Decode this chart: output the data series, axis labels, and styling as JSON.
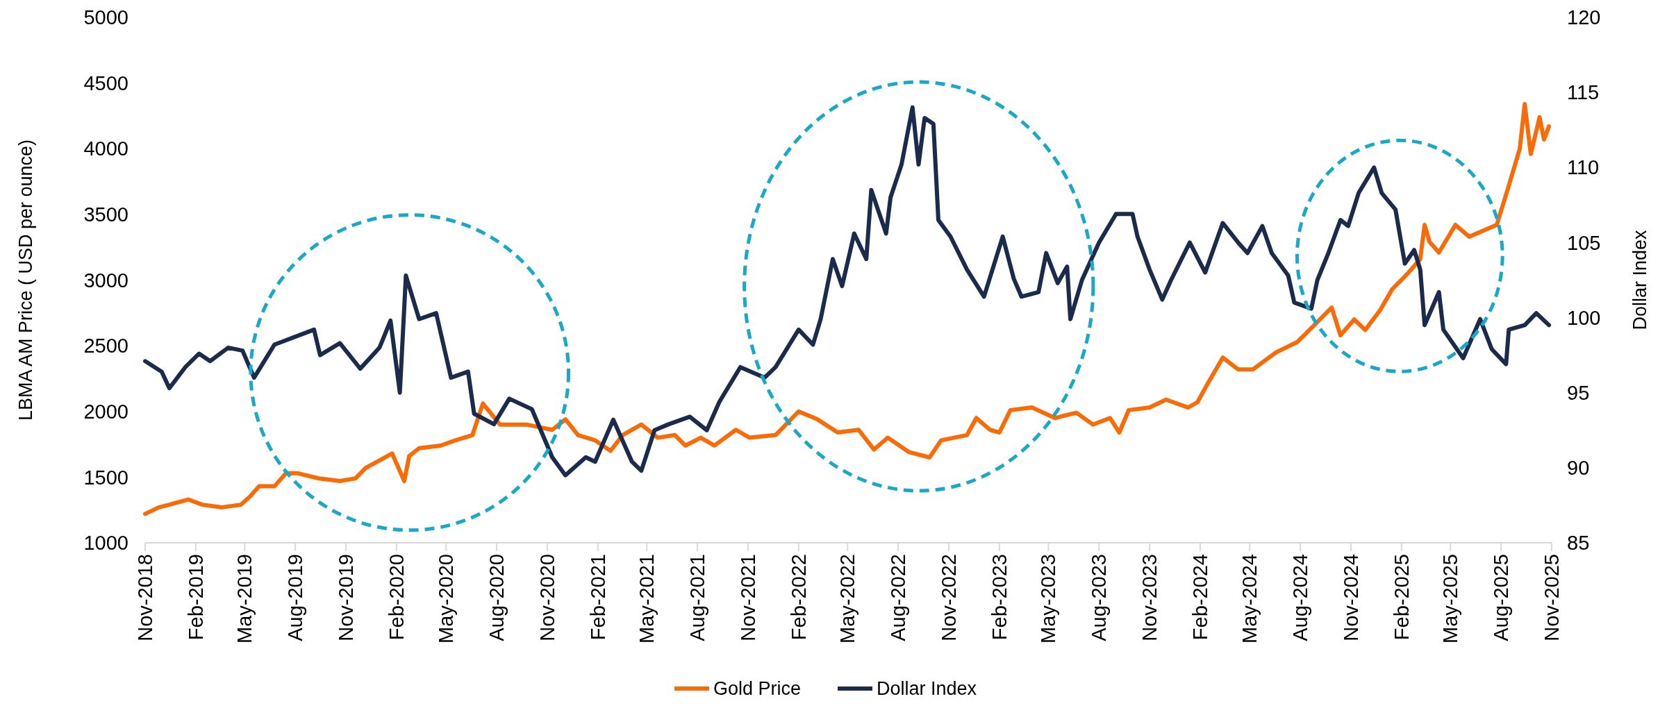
{
  "chart_data": {
    "type": "line",
    "ylabel": "LBMA AM Price ( USD per ounce)",
    "y2label": "Dollar Index",
    "xlim": [
      "2018-11",
      "2025-11"
    ],
    "xticks": [
      {
        "value": "2018-11",
        "label": "Nov-2018"
      },
      {
        "value": "2019-02",
        "label": "Feb-2019"
      },
      {
        "value": "2019-05",
        "label": "May-2019"
      },
      {
        "value": "2019-08",
        "label": "Aug-2019"
      },
      {
        "value": "2019-11",
        "label": "Nov-2019"
      },
      {
        "value": "2020-02",
        "label": "Feb-2020"
      },
      {
        "value": "2020-05",
        "label": "May-2020"
      },
      {
        "value": "2020-08",
        "label": "Aug-2020"
      },
      {
        "value": "2020-11",
        "label": "Nov-2020"
      },
      {
        "value": "2021-02",
        "label": "Feb-2021"
      },
      {
        "value": "2021-05",
        "label": "May-2021"
      },
      {
        "value": "2021-08",
        "label": "Aug-2021"
      },
      {
        "value": "2021-11",
        "label": "Nov-2021"
      },
      {
        "value": "2022-02",
        "label": "Feb-2022"
      },
      {
        "value": "2022-05",
        "label": "May-2022"
      },
      {
        "value": "2022-08",
        "label": "Aug-2022"
      },
      {
        "value": "2022-11",
        "label": "Nov-2022"
      },
      {
        "value": "2023-02",
        "label": "Feb-2023"
      },
      {
        "value": "2023-05",
        "label": "May-2023"
      },
      {
        "value": "2023-08",
        "label": "Aug-2023"
      },
      {
        "value": "2023-11",
        "label": "Nov-2023"
      },
      {
        "value": "2024-02",
        "label": "Feb-2024"
      },
      {
        "value": "2024-05",
        "label": "May-2024"
      },
      {
        "value": "2024-08",
        "label": "Aug-2024"
      },
      {
        "value": "2024-11",
        "label": "Nov-2024"
      },
      {
        "value": "2025-02",
        "label": "Feb-2025"
      },
      {
        "value": "2025-05",
        "label": "May-2025"
      },
      {
        "value": "2025-08",
        "label": "Aug-2025"
      },
      {
        "value": "2025-11",
        "label": "Nov-2025"
      }
    ],
    "ylim": [
      1000,
      5000
    ],
    "yticks": [
      1000,
      1500,
      2000,
      2500,
      3000,
      3500,
      4000,
      4500,
      5000
    ],
    "y2lim": [
      85,
      120
    ],
    "y2ticks": [
      85,
      90,
      95,
      100,
      105,
      110,
      115,
      120
    ],
    "grid": false,
    "legend": "bottom",
    "marker": "none",
    "line_style": "solid",
    "series": [
      {
        "name": "Gold Price",
        "color": "#f96b07",
        "x": [
          "2018-11-01",
          "2018-11-26",
          "2018-12-15",
          "2019-01-18",
          "2019-02-13",
          "2019-03-21",
          "2019-04-24",
          "2019-05-10",
          "2019-05-27",
          "2019-06-24",
          "2019-07-15",
          "2019-08-04",
          "2019-09-13",
          "2019-10-21",
          "2019-11-18",
          "2019-12-07",
          "2020-01-24",
          "2020-02-15",
          "2020-02-24",
          "2020-03-13",
          "2020-04-21",
          "2020-05-18",
          "2020-06-18",
          "2020-07-07",
          "2020-08-07",
          "2020-09-24",
          "2020-11-10",
          "2020-12-04",
          "2020-12-27",
          "2021-01-27",
          "2021-02-24",
          "2021-03-18",
          "2021-04-21",
          "2021-05-21",
          "2021-06-21",
          "2021-07-10",
          "2021-08-07",
          "2021-09-01",
          "2021-10-10",
          "2021-11-04",
          "2021-12-21",
          "2022-02-01",
          "2022-03-07",
          "2022-04-13",
          "2022-05-21",
          "2022-06-18",
          "2022-07-13",
          "2022-08-21",
          "2022-09-27",
          "2022-10-18",
          "2022-12-04",
          "2022-12-21",
          "2023-01-15",
          "2023-02-01",
          "2023-02-21",
          "2023-04-01",
          "2023-05-13",
          "2023-06-21",
          "2023-07-21",
          "2023-08-21",
          "2023-09-07",
          "2023-09-24",
          "2023-11-01",
          "2023-12-01",
          "2024-01-10",
          "2024-01-27",
          "2024-02-13",
          "2024-03-13",
          "2024-04-10",
          "2024-05-07",
          "2024-06-18",
          "2024-07-27",
          "2024-08-27",
          "2024-09-27",
          "2024-10-13",
          "2024-11-07",
          "2024-11-27",
          "2024-12-24",
          "2025-01-15",
          "2025-02-10",
          "2025-03-07",
          "2025-03-15",
          "2025-03-24",
          "2025-04-10",
          "2025-05-10",
          "2025-06-04",
          "2025-07-24",
          "2025-08-13",
          "2025-09-04",
          "2025-09-13",
          "2025-09-24",
          "2025-10-10",
          "2025-10-18",
          "2025-10-27"
        ],
        "values": [
          1220,
          1270,
          1290,
          1330,
          1290,
          1270,
          1290,
          1350,
          1430,
          1430,
          1530,
          1530,
          1490,
          1470,
          1490,
          1570,
          1680,
          1470,
          1660,
          1720,
          1740,
          1780,
          1820,
          2060,
          1900,
          1900,
          1860,
          1940,
          1820,
          1780,
          1700,
          1820,
          1900,
          1800,
          1820,
          1740,
          1800,
          1740,
          1860,
          1800,
          1820,
          2000,
          1940,
          1840,
          1860,
          1710,
          1800,
          1690,
          1650,
          1780,
          1820,
          1950,
          1860,
          1840,
          2010,
          2030,
          1950,
          1990,
          1900,
          1950,
          1840,
          2010,
          2030,
          2090,
          2030,
          2070,
          2200,
          2410,
          2320,
          2320,
          2450,
          2530,
          2660,
          2790,
          2580,
          2700,
          2620,
          2770,
          2930,
          3040,
          3160,
          3420,
          3290,
          3210,
          3420,
          3330,
          3420,
          3690,
          4000,
          4340,
          3960,
          4240,
          4070,
          4170
        ]
      },
      {
        "name": "Dollar Index",
        "color": "#1b2b4b",
        "axis": "y2",
        "x": [
          "2018-11-01",
          "2018-12-01",
          "2018-12-15",
          "2019-01-13",
          "2019-02-07",
          "2019-02-27",
          "2019-04-01",
          "2019-04-27",
          "2019-05-18",
          "2019-06-24",
          "2019-09-04",
          "2019-09-15",
          "2019-10-21",
          "2019-11-27",
          "2020-01-01",
          "2020-01-21",
          "2020-02-07",
          "2020-02-18",
          "2020-03-13",
          "2020-04-13",
          "2020-05-10",
          "2020-06-10",
          "2020-06-21",
          "2020-07-27",
          "2020-08-24",
          "2020-10-04",
          "2020-11-10",
          "2020-12-04",
          "2021-01-10",
          "2021-01-27",
          "2021-03-01",
          "2021-04-04",
          "2021-04-21",
          "2021-05-15",
          "2021-06-10",
          "2021-07-18",
          "2021-08-18",
          "2021-09-10",
          "2021-10-18",
          "2021-12-01",
          "2021-12-21",
          "2022-02-01",
          "2022-02-27",
          "2022-03-13",
          "2022-04-04",
          "2022-04-21",
          "2022-05-13",
          "2022-06-04",
          "2022-06-13",
          "2022-07-10",
          "2022-07-18",
          "2022-08-07",
          "2022-08-27",
          "2022-09-07",
          "2022-09-18",
          "2022-10-04",
          "2022-10-13",
          "2022-11-04",
          "2022-12-04",
          "2023-01-04",
          "2023-02-07",
          "2023-02-27",
          "2023-03-13",
          "2023-04-13",
          "2023-04-27",
          "2023-05-18",
          "2023-06-04",
          "2023-06-10",
          "2023-07-01",
          "2023-08-01",
          "2023-09-01",
          "2023-10-01",
          "2023-10-10",
          "2023-11-01",
          "2023-11-24",
          "2023-12-10",
          "2024-01-13",
          "2024-02-10",
          "2024-03-13",
          "2024-04-10",
          "2024-04-27",
          "2024-05-24",
          "2024-06-10",
          "2024-07-10",
          "2024-07-21",
          "2024-08-21",
          "2024-09-01",
          "2024-09-21",
          "2024-10-13",
          "2024-10-27",
          "2024-11-15",
          "2024-12-13",
          "2024-12-27",
          "2025-01-21",
          "2025-02-07",
          "2025-02-24",
          "2025-03-07",
          "2025-03-15",
          "2025-04-10",
          "2025-04-18",
          "2025-05-24",
          "2025-06-24",
          "2025-07-15",
          "2025-08-10",
          "2025-08-15",
          "2025-09-13",
          "2025-10-04",
          "2025-10-27"
        ],
        "values": [
          97.1,
          96.4,
          95.3,
          96.7,
          97.6,
          97.1,
          98.0,
          97.8,
          96.0,
          98.2,
          99.2,
          97.5,
          98.3,
          96.6,
          98.0,
          99.8,
          95.0,
          102.8,
          99.9,
          100.3,
          96.0,
          96.4,
          93.6,
          92.9,
          94.6,
          93.9,
          90.7,
          89.5,
          90.7,
          90.4,
          93.2,
          90.4,
          89.8,
          92.5,
          92.9,
          93.4,
          92.5,
          94.4,
          96.7,
          96.0,
          96.7,
          99.2,
          98.2,
          99.9,
          103.9,
          102.1,
          105.6,
          103.9,
          108.5,
          105.6,
          108.0,
          110.2,
          114.0,
          110.2,
          113.3,
          112.9,
          106.5,
          105.4,
          103.2,
          101.4,
          105.4,
          102.6,
          101.4,
          101.7,
          104.3,
          102.3,
          103.4,
          99.9,
          102.5,
          105.0,
          106.9,
          106.9,
          105.4,
          103.2,
          101.2,
          102.5,
          105.0,
          103.0,
          106.3,
          105.0,
          104.3,
          106.1,
          104.3,
          102.8,
          101.0,
          100.6,
          102.5,
          104.3,
          106.5,
          106.1,
          108.3,
          110.0,
          108.3,
          107.2,
          103.6,
          104.5,
          103.2,
          99.5,
          101.7,
          99.2,
          97.3,
          99.9,
          97.9,
          96.9,
          99.2,
          99.5,
          100.3,
          99.5
        ]
      }
    ]
  }
}
